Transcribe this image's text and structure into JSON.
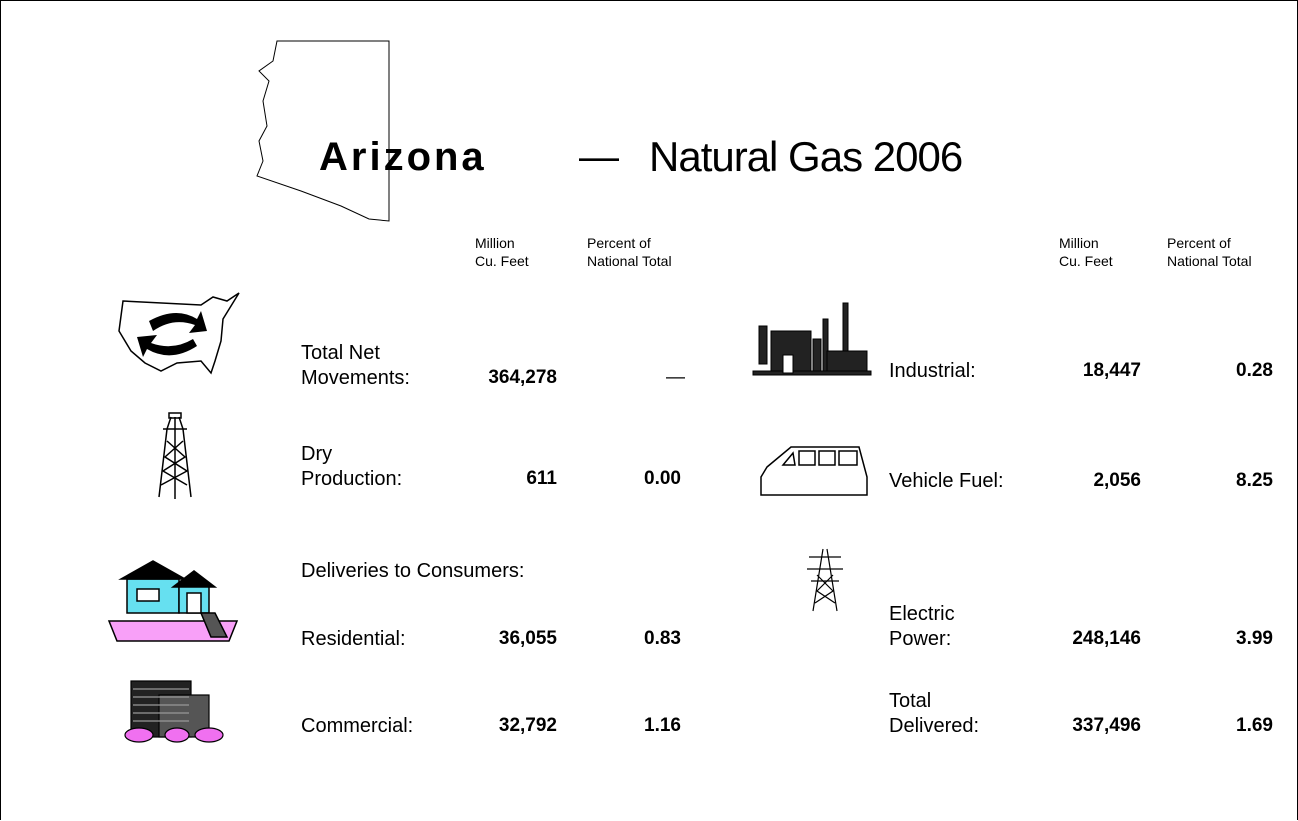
{
  "header": {
    "state": "Arizona",
    "dash": "—",
    "title": "Natural Gas 2006"
  },
  "columns": {
    "volume": [
      "Million",
      "Cu. Feet"
    ],
    "percent": [
      "Percent of",
      "National Total"
    ]
  },
  "left": {
    "movements": {
      "label": [
        "Total Net",
        "Movements:"
      ],
      "volume": "364,278",
      "percent": "—"
    },
    "production": {
      "label": [
        "Dry",
        "Production:"
      ],
      "volume": "611",
      "percent": "0.00"
    },
    "deliveries_heading": "Deliveries to Consumers:",
    "residential": {
      "label": [
        "Residential:"
      ],
      "volume": "36,055",
      "percent": "0.83"
    },
    "commercial": {
      "label": [
        "Commercial:"
      ],
      "volume": "32,792",
      "percent": "1.16"
    }
  },
  "right": {
    "industrial": {
      "label": [
        "Industrial:"
      ],
      "volume": "18,447",
      "percent": "0.28"
    },
    "vehicle": {
      "label": [
        "Vehicle Fuel:"
      ],
      "volume": "2,056",
      "percent": "8.25"
    },
    "electric": {
      "label": [
        "Electric",
        "Power:"
      ],
      "volume": "248,146",
      "percent": "3.99"
    },
    "total": {
      "label": [
        "Total",
        "Delivered:"
      ],
      "volume": "337,496",
      "percent": "1.69"
    }
  }
}
